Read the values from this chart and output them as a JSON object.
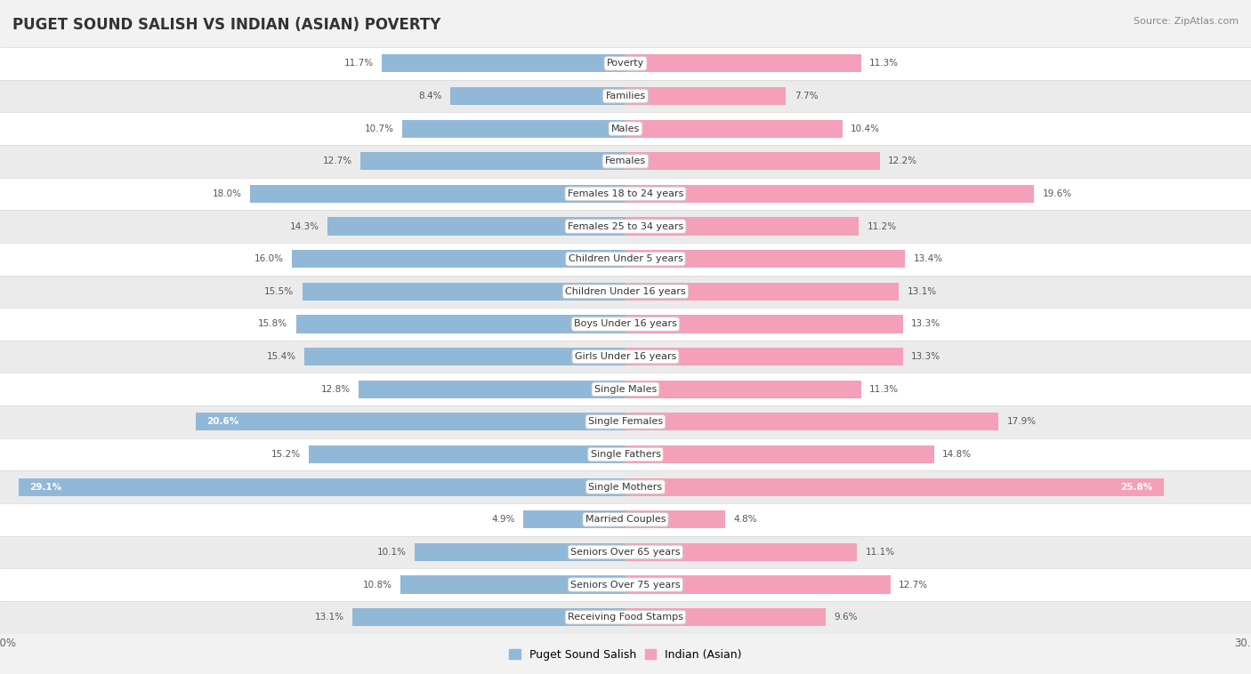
{
  "title": "PUGET SOUND SALISH VS INDIAN (ASIAN) POVERTY",
  "source": "Source: ZipAtlas.com",
  "categories": [
    "Poverty",
    "Families",
    "Males",
    "Females",
    "Females 18 to 24 years",
    "Females 25 to 34 years",
    "Children Under 5 years",
    "Children Under 16 years",
    "Boys Under 16 years",
    "Girls Under 16 years",
    "Single Males",
    "Single Females",
    "Single Fathers",
    "Single Mothers",
    "Married Couples",
    "Seniors Over 65 years",
    "Seniors Over 75 years",
    "Receiving Food Stamps"
  ],
  "left_values": [
    11.7,
    8.4,
    10.7,
    12.7,
    18.0,
    14.3,
    16.0,
    15.5,
    15.8,
    15.4,
    12.8,
    20.6,
    15.2,
    29.1,
    4.9,
    10.1,
    10.8,
    13.1
  ],
  "right_values": [
    11.3,
    7.7,
    10.4,
    12.2,
    19.6,
    11.2,
    13.4,
    13.1,
    13.3,
    13.3,
    11.3,
    17.9,
    14.8,
    25.8,
    4.8,
    11.1,
    12.7,
    9.6
  ],
  "left_color": "#92b8d8",
  "right_color": "#f4a0b8",
  "left_label": "Puget Sound Salish",
  "right_label": "Indian (Asian)",
  "max_val": 30.0,
  "title_fontsize": 12,
  "source_fontsize": 8,
  "label_fontsize": 8,
  "value_fontsize": 7.5
}
